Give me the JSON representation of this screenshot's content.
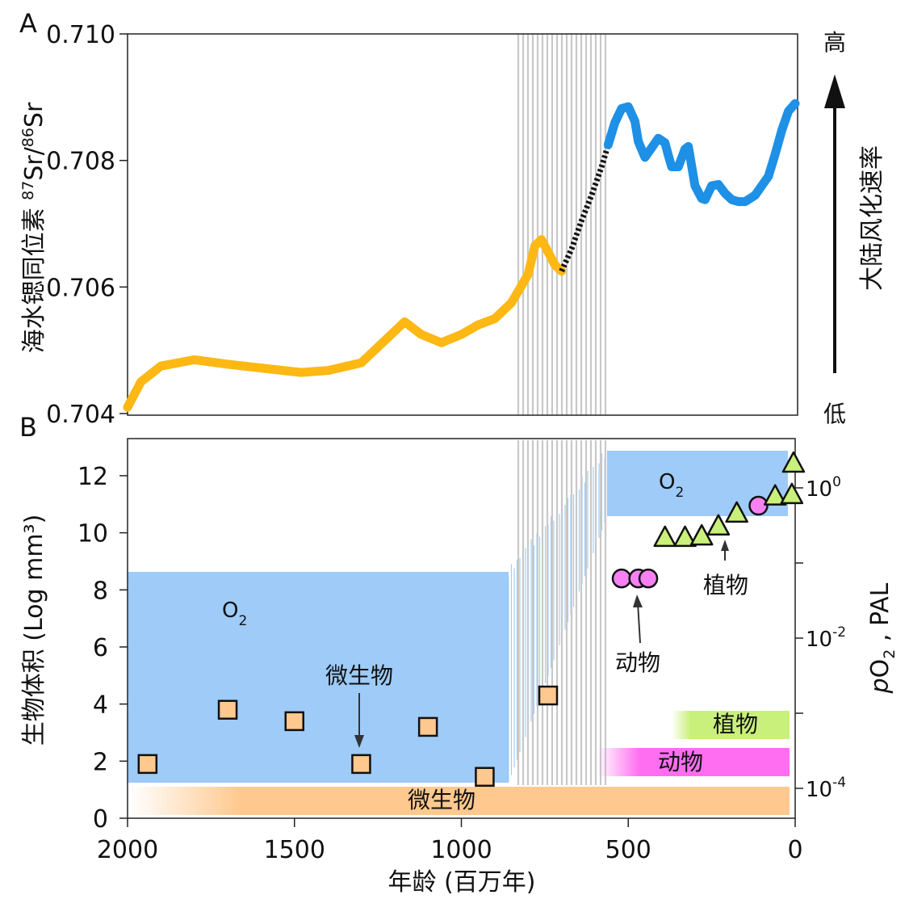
{
  "panel_labels": {
    "a": "A",
    "b": "B"
  },
  "top_chart": {
    "ylabel_main": "海水锶同位素 ",
    "ylabel_iso1": "87",
    "ylabel_mid": "Sr/",
    "ylabel_iso2": "86",
    "ylabel_end": "Sr",
    "right_high": "高",
    "right_low": "低",
    "right_label": "大陆风化速率"
  },
  "bottom_chart": {
    "ylabel": "生物体积 (Log mm³)",
    "xlabel": "年龄 (百万年)",
    "right_ylabel_p": "p",
    "right_ylabel_o": "O",
    "right_ylabel_2": "2",
    "right_ylabel_rest": " , PAL",
    "o2_text": "O",
    "o2_sub": "2",
    "annotations": {
      "microbes": "微生物",
      "animals": "动物",
      "plants": "植物"
    },
    "bars": {
      "microbes": "微生物",
      "animals": "动物",
      "plants": "植物"
    },
    "right_ticks": [
      {
        "base": "10",
        "exp": "0"
      },
      {
        "base": "10",
        "exp": "-2"
      },
      {
        "base": "10",
        "exp": "-4"
      }
    ]
  },
  "chart_data": [
    {
      "type": "line",
      "panel": "A",
      "xlim": [
        2000,
        0
      ],
      "ylim": [
        0.704,
        0.71
      ],
      "y_ticks": [
        "0.704",
        "0.706",
        "0.708",
        "0.710"
      ],
      "series": [
        {
          "color": "#FDB813",
          "x": [
            2000,
            1960,
            1900,
            1800,
            1700,
            1600,
            1480,
            1400,
            1300,
            1220,
            1170,
            1120,
            1060,
            1000,
            950,
            900,
            850,
            800,
            780,
            760,
            740,
            720,
            700
          ],
          "y": [
            0.7041,
            0.7045,
            0.70475,
            0.70485,
            0.70478,
            0.70472,
            0.70465,
            0.70468,
            0.7048,
            0.7052,
            0.70545,
            0.70525,
            0.70512,
            0.70525,
            0.7054,
            0.7055,
            0.70575,
            0.7062,
            0.70665,
            0.70675,
            0.70655,
            0.70635,
            0.70625
          ]
        },
        {
          "color": "#111111",
          "dashed": true,
          "x": [
            700,
            670,
            640,
            610,
            580,
            560
          ],
          "y": [
            0.70625,
            0.7066,
            0.70705,
            0.70745,
            0.7079,
            0.70825
          ]
        },
        {
          "color": "#1E90E6",
          "x": [
            560,
            540,
            520,
            500,
            480,
            470,
            450,
            430,
            410,
            390,
            380,
            370,
            350,
            330,
            320,
            300,
            280,
            270,
            250,
            230,
            210,
            190,
            170,
            150,
            120,
            100,
            80,
            60,
            40,
            20,
            0
          ],
          "y": [
            0.70825,
            0.7086,
            0.70882,
            0.70885,
            0.70862,
            0.7083,
            0.70805,
            0.7082,
            0.70835,
            0.70828,
            0.70808,
            0.7079,
            0.7079,
            0.70818,
            0.70822,
            0.7076,
            0.7074,
            0.70738,
            0.7076,
            0.70762,
            0.70748,
            0.70738,
            0.70735,
            0.70735,
            0.70745,
            0.7076,
            0.70775,
            0.7081,
            0.70848,
            0.70878,
            0.7089
          ]
        }
      ]
    },
    {
      "type": "scatter",
      "panel": "B",
      "xlim": [
        2000,
        0
      ],
      "ylim": [
        0,
        13.3
      ],
      "x_ticks": [
        2000,
        1500,
        1000,
        500,
        0
      ],
      "y_ticks": [
        0,
        2,
        4,
        6,
        8,
        10,
        12
      ],
      "series": [
        {
          "name": "微生物",
          "marker": "square",
          "color": "#FFC88E",
          "x": [
            1940,
            1700,
            1500,
            1300,
            1100,
            930,
            740
          ],
          "y": [
            1.9,
            3.8,
            3.4,
            1.9,
            3.2,
            1.45,
            4.3
          ]
        },
        {
          "name": "动物",
          "marker": "circle",
          "color": "#F781F3",
          "x": [
            520,
            470,
            440,
            110
          ],
          "y": [
            8.4,
            8.4,
            8.4,
            10.95
          ]
        },
        {
          "name": "植物",
          "marker": "triangle",
          "color": "#C9F07A",
          "x": [
            390,
            330,
            280,
            230,
            175,
            60,
            10,
            5
          ],
          "y": [
            9.85,
            9.85,
            9.9,
            10.25,
            10.7,
            11.3,
            11.35,
            12.45
          ]
        }
      ]
    }
  ]
}
